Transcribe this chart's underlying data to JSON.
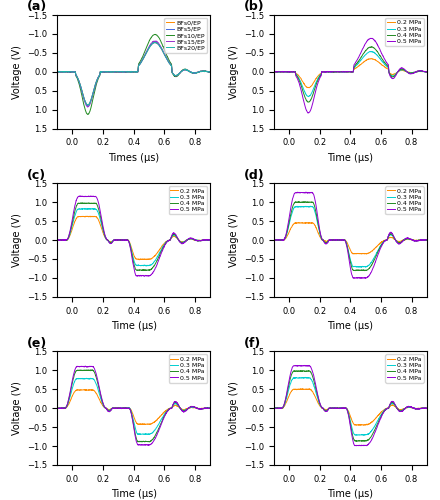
{
  "colors_4": [
    "#FF8C00",
    "#00CED1",
    "#228B22",
    "#9400D3"
  ],
  "colors_5": [
    "#FF8C00",
    "#4169E1",
    "#228B22",
    "#9932CC",
    "#20B2AA"
  ],
  "xlim": [
    -0.1,
    0.9
  ],
  "xticks": [
    0.0,
    0.2,
    0.4,
    0.6,
    0.8
  ],
  "legend_a": [
    "BFs0/EP",
    "BFs5/EP",
    "BFs10/EP",
    "BFs15/EP",
    "BFs20/EP"
  ],
  "legend_bcdef": [
    "0.2 MPa",
    "0.3 MPa",
    "0.4 MPa",
    "0.5 MPa"
  ],
  "xlabel_a": "Times (μs)",
  "xlabel_std": "Time (μs)",
  "ylabel": "Voltage (V)",
  "panel_labels": [
    "(a)",
    "(b)",
    "(c)",
    "(d)",
    "(e)",
    "(f)"
  ],
  "figsize": [
    4.4,
    5.0
  ],
  "dpi": 100
}
